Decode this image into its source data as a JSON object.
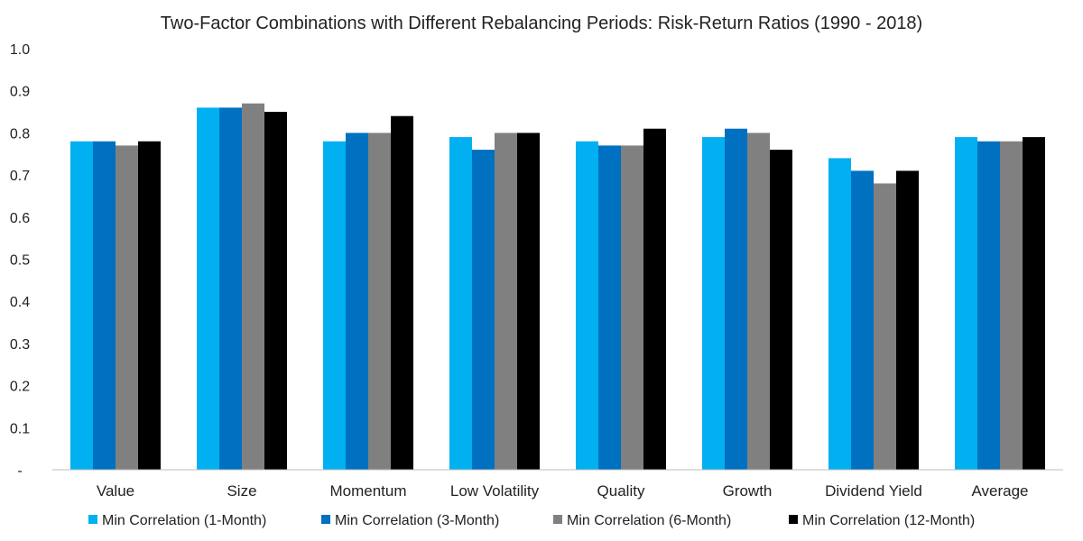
{
  "chart_data": {
    "type": "bar",
    "title": "Two-Factor Combinations with Different Rebalancing Periods: Risk-Return Ratios (1990 - 2018)",
    "xlabel": "",
    "ylabel": "",
    "ylim": [
      0,
      1.0
    ],
    "yticks": [
      "-",
      "0.1",
      "0.2",
      "0.3",
      "0.4",
      "0.5",
      "0.6",
      "0.7",
      "0.8",
      "0.9",
      "1.0"
    ],
    "grid": false,
    "legend": "bottom",
    "categories": [
      "Value",
      "Size",
      "Momentum",
      "Low Volatility",
      "Quality",
      "Growth",
      "Dividend Yield",
      "Average"
    ],
    "series": [
      {
        "name": "Min Correlation (1-Month)",
        "color": "#00b0f0",
        "values": [
          0.78,
          0.86,
          0.78,
          0.79,
          0.78,
          0.79,
          0.74,
          0.79
        ]
      },
      {
        "name": "Min Correlation (3-Month)",
        "color": "#0070c0",
        "values": [
          0.78,
          0.86,
          0.8,
          0.76,
          0.77,
          0.81,
          0.71,
          0.78
        ]
      },
      {
        "name": "Min Correlation (6-Month)",
        "color": "#808080",
        "values": [
          0.77,
          0.87,
          0.8,
          0.8,
          0.77,
          0.8,
          0.68,
          0.78
        ]
      },
      {
        "name": "Min Correlation (12-Month)",
        "color": "#000000",
        "values": [
          0.78,
          0.85,
          0.84,
          0.8,
          0.81,
          0.76,
          0.71,
          0.79
        ]
      }
    ]
  }
}
